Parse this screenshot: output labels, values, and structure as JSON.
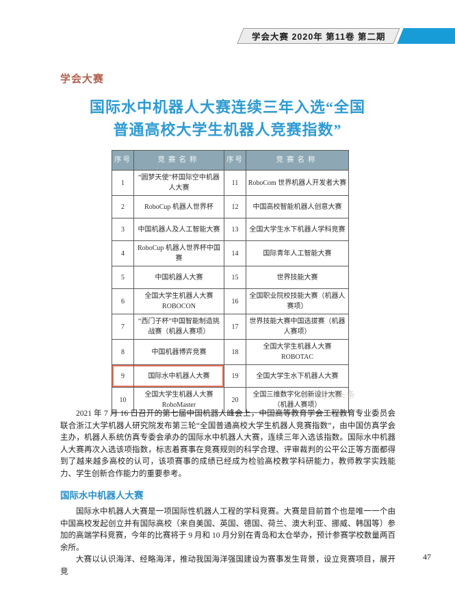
{
  "header": {
    "issue_info": "学会大赛  2020年  第11卷  第二期"
  },
  "section_label": "学会大赛",
  "title": {
    "line1": "国际水中机器人大赛连续三年入选“全国",
    "line2": "普通高校大学生机器人竞赛指数”"
  },
  "table": {
    "headers": [
      "序号",
      "竞赛名称",
      "序号",
      "竞赛名称"
    ],
    "rows": [
      {
        "no_left": "1",
        "name_left": "“圆梦天使”杯国际空中机器\n人大赛",
        "no_right": "11",
        "name_right": "RoboCom 世界机器人开发者大赛",
        "highlight": false
      },
      {
        "no_left": "2",
        "name_left": "RoboCup 机器人世界杯",
        "no_right": "12",
        "name_right": "中国高校智能机器人创意大赛",
        "highlight": false
      },
      {
        "no_left": "3",
        "name_left": "中国机器人及人工智能大赛",
        "no_right": "13",
        "name_right": "全国大学生水下机器人学科竞赛",
        "highlight": false
      },
      {
        "no_left": "4",
        "name_left": "RoboCup 机器人世界杯中国赛",
        "no_right": "14",
        "name_right": "国际青年人工智能大赛",
        "highlight": false
      },
      {
        "no_left": "5",
        "name_left": "中国机器人大赛",
        "no_right": "15",
        "name_right": "世界技能大赛",
        "highlight": false
      },
      {
        "no_left": "6",
        "name_left": "全国大学生机器人大赛\nROBOCON",
        "no_right": "16",
        "name_right": "全国职业院校技能大赛（机器人\n赛项）",
        "highlight": false
      },
      {
        "no_left": "7",
        "name_left": "“西门子杯”中国智能制造挑\n战赛（机器人赛项）",
        "no_right": "17",
        "name_right": "世界技能大赛中国选拔赛（机器\n人赛项）",
        "highlight": false
      },
      {
        "no_left": "8",
        "name_left": "中国机器博弈竞赛",
        "no_right": "18",
        "name_right": "全国大学生机器人大赛 ROBOTAC",
        "highlight": false
      },
      {
        "no_left": "9",
        "name_left": "国际水中机器人大赛",
        "no_right": "19",
        "name_right": "全国大学生水下机器人大赛",
        "highlight": true
      },
      {
        "no_left": "10",
        "name_left": "全国大学生机器人大赛\nRoboMaster",
        "no_right": "20",
        "name_right": "全国三维数字化创新设计大赛\n（机器人赛项）",
        "highlight": false
      }
    ]
  },
  "watermark": "简学头条",
  "body": {
    "paragraph1": "2021 年 7 月 16 日召开的第七届中国机器人峰会上，中国高等教育学会工程教育专业委员会联合浙江大学机器人研究院发布第三轮“全国普通高校大学生机器人竞赛指数”，由中国仿真学会主办，机器人系统仿真专委会承办的国际水中机器人大赛，连续三年入选该指数。国际水中机器人大赛再次入选该项指数，标志着赛事在竞赛规则的科学合理、评审裁判的公平公正等方面都得到了越来越多高校的认可，该项赛事的成绩已经成为检验高校教学科研能力，教师教学实践能力、学生创新合作能力的重要参考。",
    "subheading": "国际水中机器人大赛",
    "paragraph2": "国际水中机器人大赛是一项国际性机器人工程的学科竞赛。大赛是目前首个也是唯一一个由中国高校发起创立并有国际高校（来自美国、英国、德国、荷兰、澳大利亚、挪威、韩国等）参加的高端学科竞赛，今年的比赛将于 9 月和 10 月分别在青岛和太仓举办，预计参赛学校数量两百余所。",
    "paragraph3": "大赛以认识海洋、经略海洋，推动我国海洋强国建设为赛事发生背景，设立竞赛项目，展开竞"
  },
  "page_number": "47",
  "colors": {
    "banner_blue": "#189cd8",
    "banner_gray": "#ececec",
    "title_blue": "#2e9bd2",
    "section_red": "#b2604e",
    "subheading_blue": "#2a8fc7",
    "table_header_bg": "#8da8b4",
    "highlight_red": "#e8735a"
  }
}
